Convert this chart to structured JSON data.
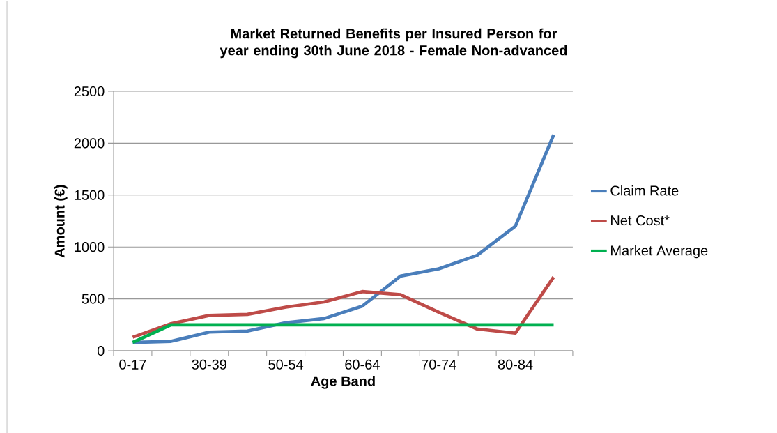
{
  "chart_data": {
    "type": "line",
    "title": "Market Returned Benefits per Insured Person for year ending 30th June 2018 - Female Non-advanced",
    "xlabel": "Age Band",
    "ylabel": "Amount (€)",
    "categories": [
      "0-17",
      null,
      "30-39",
      null,
      "50-54",
      null,
      "60-64",
      null,
      "70-74",
      null,
      "80-84",
      null
    ],
    "series": [
      {
        "name": "Claim Rate",
        "color": "#4a7ebb",
        "values": [
          80,
          90,
          180,
          190,
          270,
          310,
          430,
          720,
          790,
          920,
          1200,
          2080
        ]
      },
      {
        "name": "Net Cost*",
        "color": "#be4b48",
        "values": [
          130,
          260,
          340,
          350,
          420,
          470,
          570,
          540,
          370,
          210,
          170,
          710
        ]
      },
      {
        "name": "Market Average",
        "color": "#00b050",
        "values": [
          80,
          250,
          250,
          250,
          250,
          250,
          250,
          250,
          250,
          250,
          250,
          250
        ]
      }
    ],
    "ylim": [
      0,
      2500
    ],
    "yticks": [
      0,
      500,
      1000,
      1500,
      2000,
      2500
    ],
    "grid": "y",
    "legend": "right",
    "marker": "none",
    "line_style": "solid"
  }
}
